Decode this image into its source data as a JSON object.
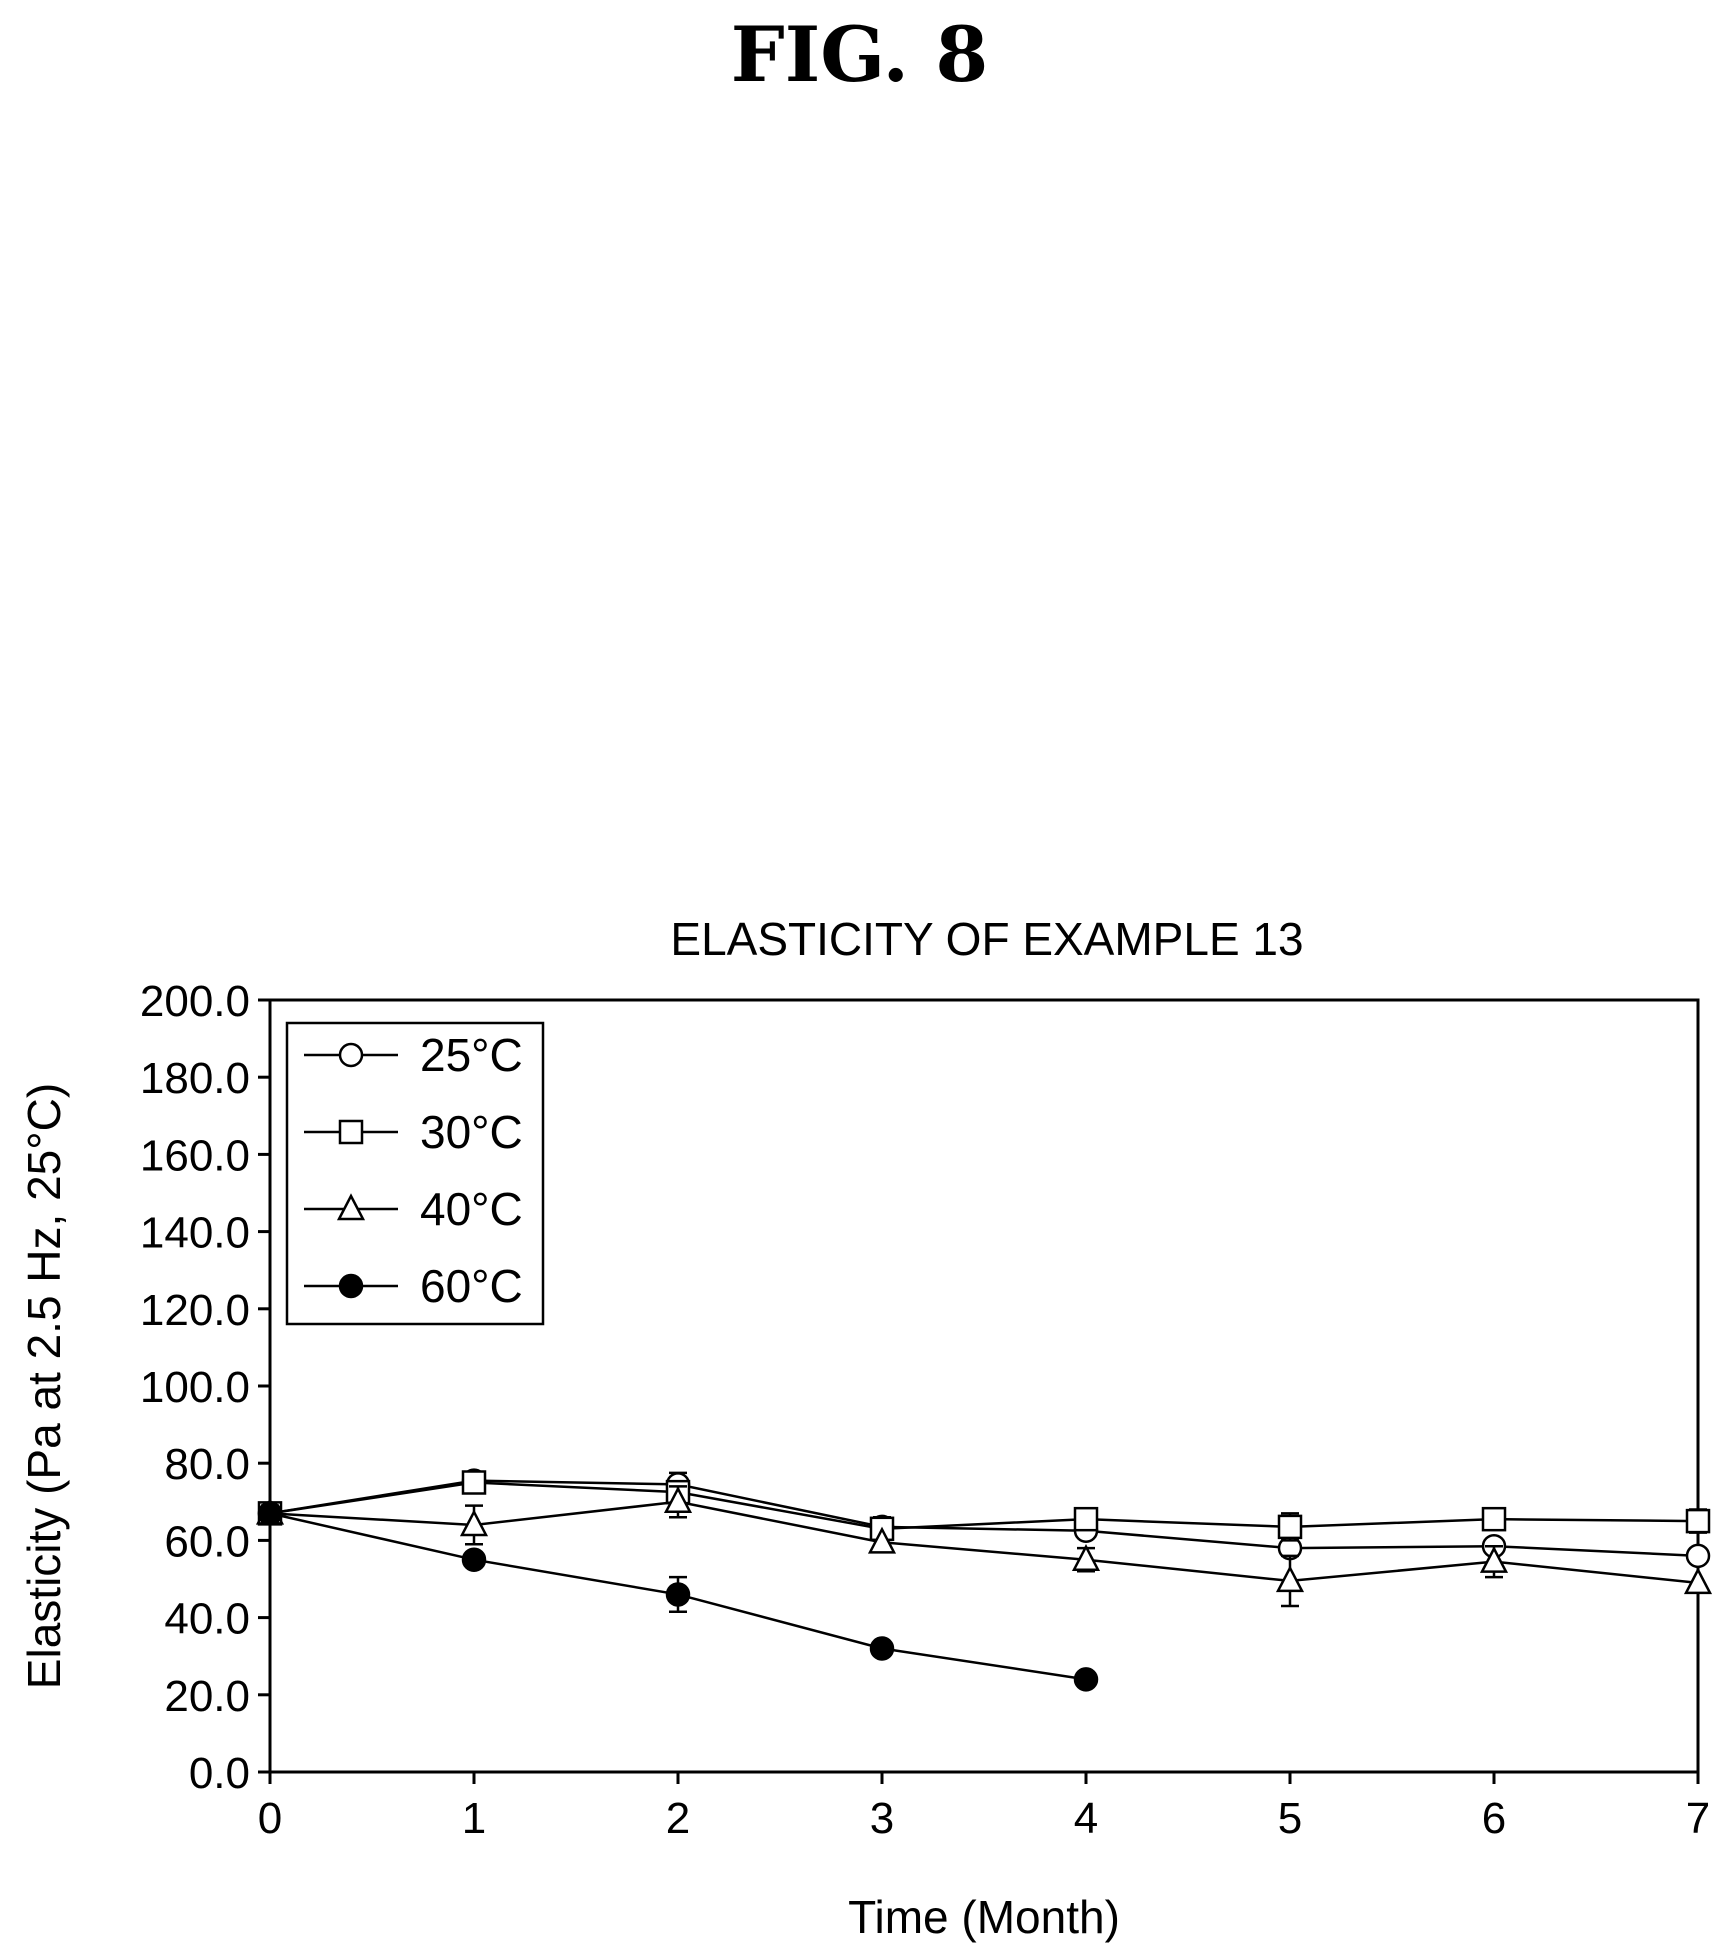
{
  "figure_label": "FIG. 8",
  "chart_data": {
    "type": "line",
    "title": "ELASTICITY OF EXAMPLE 13",
    "xlabel": "Time (Month)",
    "ylabel": "Elasticity (Pa at 2.5 Hz, 25°C)",
    "xlim": [
      0,
      7
    ],
    "ylim": [
      0,
      200
    ],
    "x_ticks": [
      "0",
      "1",
      "2",
      "3",
      "4",
      "5",
      "6",
      "7"
    ],
    "y_ticks": [
      "0.0",
      "20.0",
      "40.0",
      "60.0",
      "80.0",
      "100.0",
      "120.0",
      "140.0",
      "160.0",
      "180.0",
      "200.0"
    ],
    "grid": false,
    "legend_position": "top-left",
    "series": [
      {
        "name": "25°C",
        "marker": "open-circle",
        "x": [
          0,
          1,
          2,
          3,
          4,
          5,
          6,
          7
        ],
        "y": [
          67.0,
          75.5,
          74.5,
          63.5,
          62.5,
          58.0,
          58.5,
          56.0
        ],
        "err": [
          2.0,
          1.5,
          3.0,
          2.5,
          0,
          0,
          0,
          0
        ]
      },
      {
        "name": "30°C",
        "marker": "open-square",
        "x": [
          0,
          1,
          2,
          3,
          4,
          5,
          6,
          7
        ],
        "y": [
          67.0,
          75.0,
          72.5,
          63.0,
          65.5,
          63.5,
          65.5,
          65.0
        ],
        "err": [
          2.0,
          0,
          1.5,
          2.5,
          0,
          3.5,
          0,
          3.0
        ]
      },
      {
        "name": "40°C",
        "marker": "open-triangle",
        "x": [
          0,
          1,
          2,
          3,
          4,
          5,
          6,
          7
        ],
        "y": [
          67.0,
          64.0,
          70.0,
          59.5,
          55.0,
          49.5,
          54.5,
          49.0
        ],
        "err": [
          2.0,
          5.0,
          4.0,
          0,
          3.0,
          6.5,
          4.0,
          0
        ]
      },
      {
        "name": "60°C",
        "marker": "filled-circle",
        "x": [
          0,
          1,
          2,
          3,
          4
        ],
        "y": [
          67.0,
          55.0,
          46.0,
          32.0,
          24.0
        ],
        "err": [
          2.0,
          1.5,
          4.5,
          0,
          0
        ]
      }
    ]
  }
}
